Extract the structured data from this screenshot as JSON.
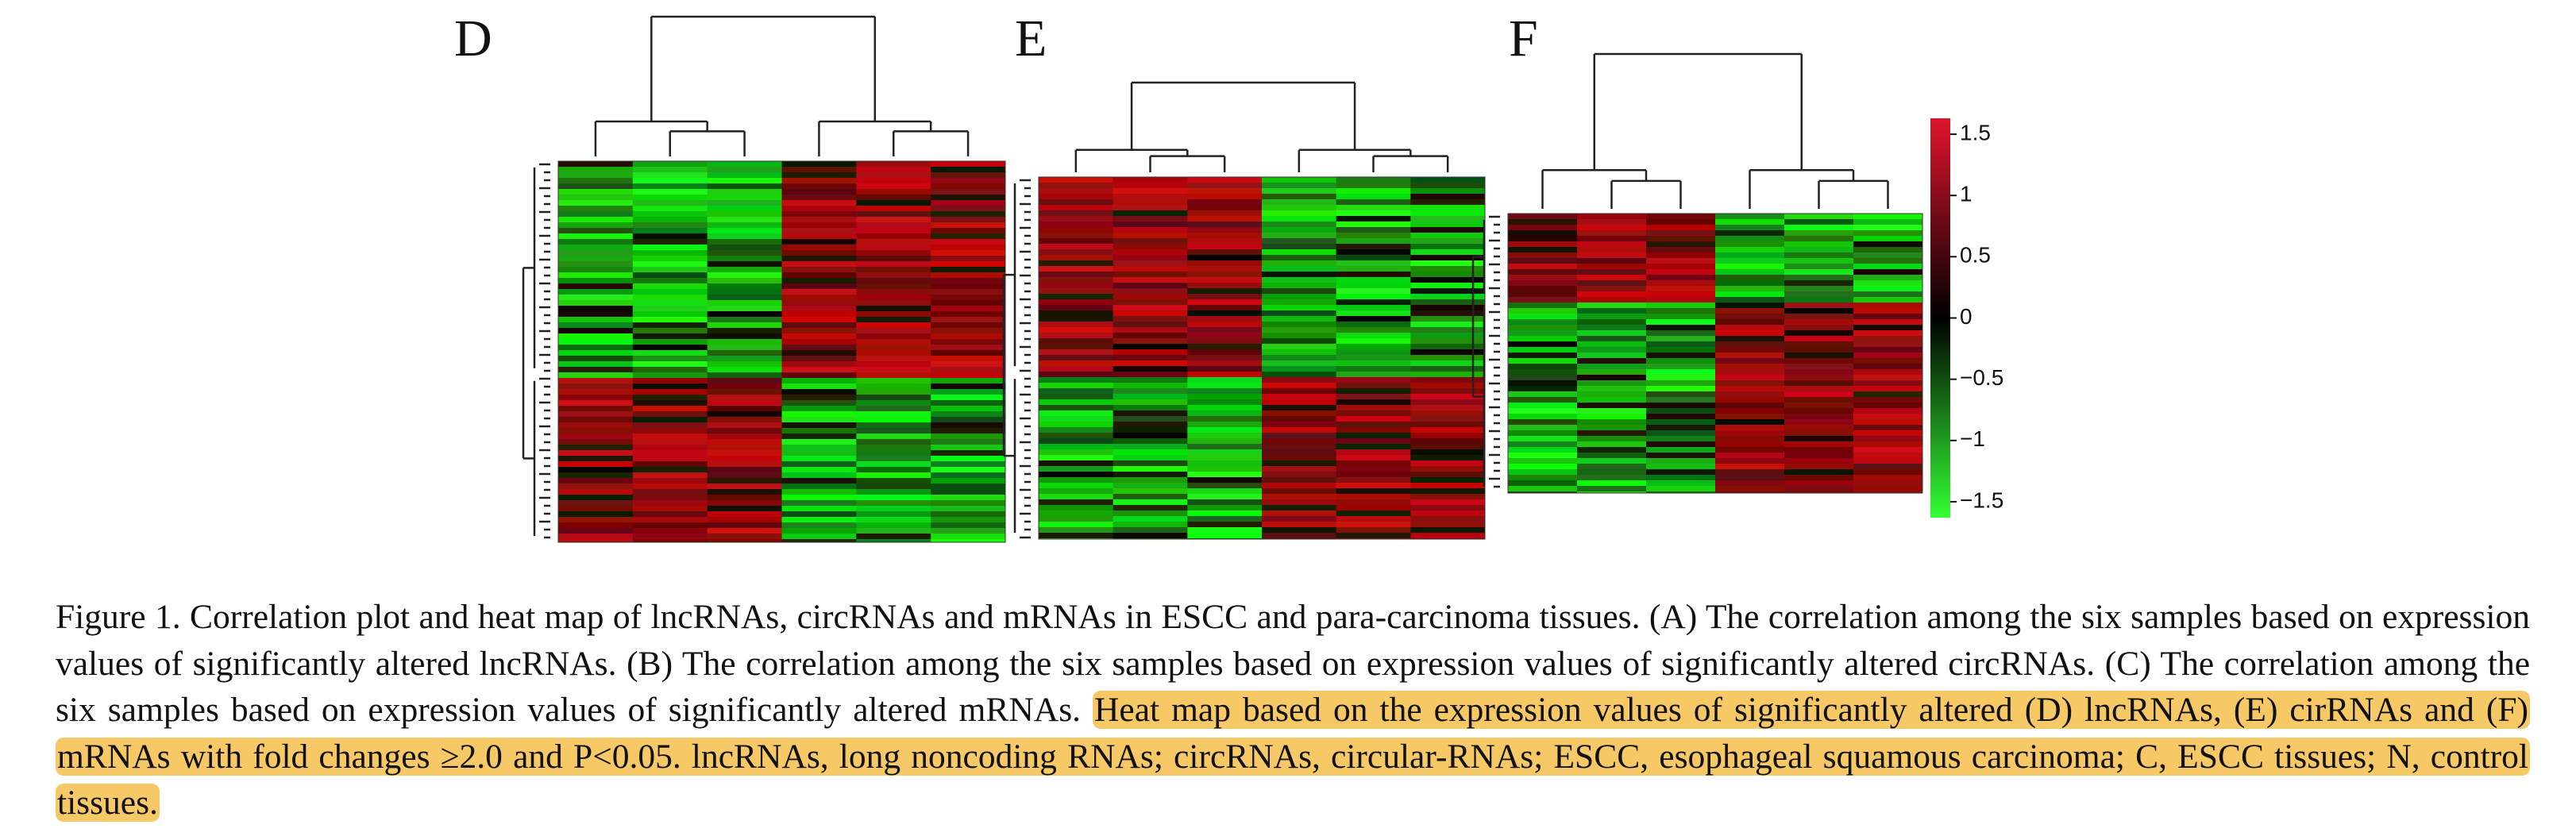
{
  "panels": [
    {
      "label": "D"
    },
    {
      "label": "E"
    },
    {
      "label": "F"
    }
  ],
  "colorbar": {
    "lim": [
      -1.63,
      1.63
    ],
    "ticks": [
      1.5,
      1,
      0.5,
      0,
      {
        "value": -0.5,
        "label": "−0.5"
      },
      {
        "value": -1,
        "label": "−1"
      },
      {
        "value": -1.5,
        "label": "−1.5"
      }
    ]
  },
  "caption": {
    "text": "Figure 1. Correlation plot and heat map of lncRNAs, circRNAs and mRNAs in ESCC and para-carcinoma tissues. (A) The correlation among the six samples based on expression values of significantly altered lncRNAs. (B) The correlation among the six samples based on expression values of significantly altered circRNAs. (C) The correlation among the six samples based on expression values of significantly altered mRNAs.",
    "highlight": "Heat map based on the expression values of significantly altered (D) lncRNAs, (E) cirRNAs and (F) mRNAs with fold changes ≥2.0 and P<0.05. lncRNAs, long noncoding RNAs; circRNAs, circular-RNAs; ESCC, esophageal squamous carcinoma; C, ESCC tissues; N, control tissues."
  }
}
